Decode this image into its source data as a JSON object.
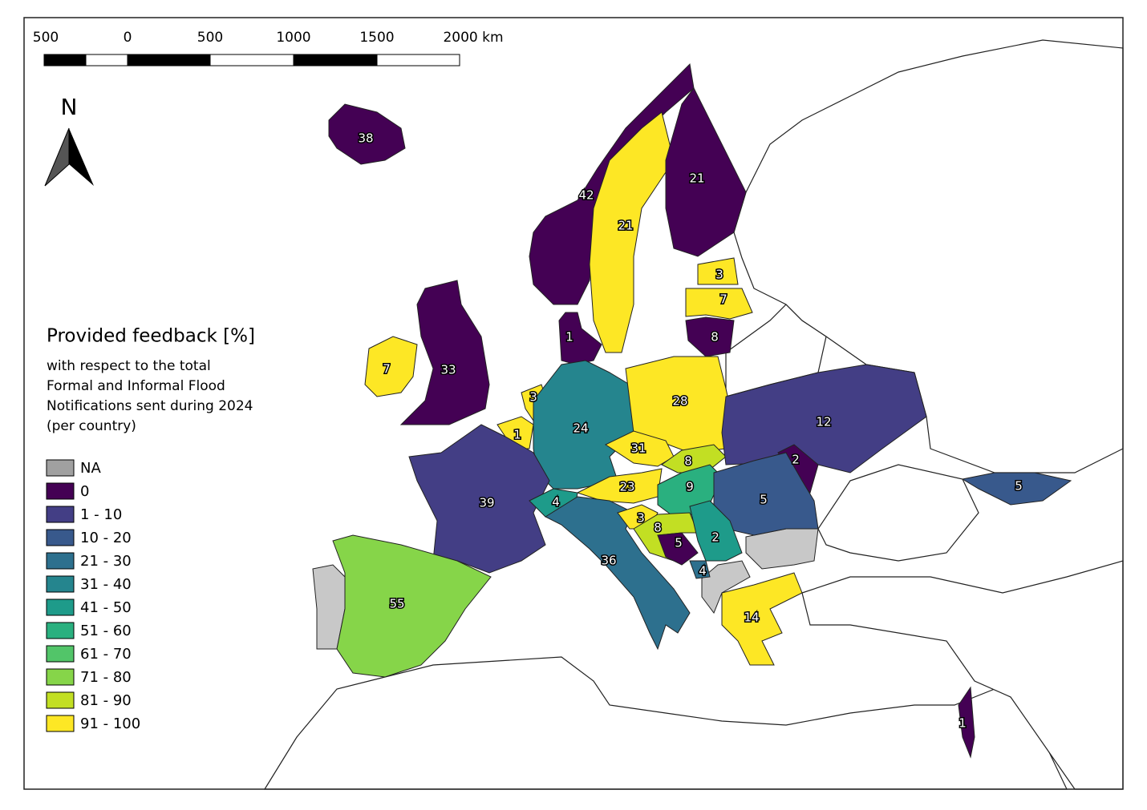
{
  "scale_bar": {
    "labels": [
      "500",
      "0",
      "500",
      "1000",
      "1500",
      "2000 km"
    ]
  },
  "north": "N",
  "legend": {
    "title": "Provided feedback [%]",
    "subtitle": [
      "with respect to the total",
      "Formal and Informal Flood",
      "Notifications sent during 2024",
      "(per country)"
    ],
    "entries": [
      {
        "label": "NA",
        "color": "#a0a0a0"
      },
      {
        "label": "0",
        "color": "#440154"
      },
      {
        "label": "1 - 10",
        "color": "#433e85"
      },
      {
        "label": "10 - 20",
        "color": "#38598c"
      },
      {
        "label": "21 - 30",
        "color": "#2d708e"
      },
      {
        "label": "31 - 40",
        "color": "#25858e"
      },
      {
        "label": "41 - 50",
        "color": "#1e9b8a"
      },
      {
        "label": "51 - 60",
        "color": "#2ab07f"
      },
      {
        "label": "61 - 70",
        "color": "#52c569"
      },
      {
        "label": "71 - 80",
        "color": "#86d549"
      },
      {
        "label": "81 - 90",
        "color": "#c2df23"
      },
      {
        "label": "91 - 100",
        "color": "#fde725"
      }
    ]
  },
  "regions": [
    {
      "label": 38,
      "color": "#440154"
    },
    {
      "label": 42,
      "color": "#440154"
    },
    {
      "label": 21,
      "color": "#fde725"
    },
    {
      "label": 21,
      "color": "#440154"
    },
    {
      "label": 3,
      "color": "#fde725"
    },
    {
      "label": 7,
      "color": "#fde725"
    },
    {
      "label": 8,
      "color": "#440154"
    },
    {
      "label": 1,
      "color": "#440154"
    },
    {
      "label": 33,
      "color": "#440154"
    },
    {
      "label": 7,
      "color": "#fde725"
    },
    {
      "label": 3,
      "color": "#fde725"
    },
    {
      "label": 1,
      "color": "#fde725"
    },
    {
      "label": 24,
      "color": "#25858e"
    },
    {
      "label": 28,
      "color": "#fde725"
    },
    {
      "label": 31,
      "color": "#fde725"
    },
    {
      "label": 8,
      "color": "#c2df23"
    },
    {
      "label": 23,
      "color": "#fde725"
    },
    {
      "label": 9,
      "color": "#2ab07f"
    },
    {
      "label": 12,
      "color": "#433e85"
    },
    {
      "label": 2,
      "color": "#440154"
    },
    {
      "label": 5,
      "color": "#38598c"
    },
    {
      "label": 5,
      "color": "#38598c"
    },
    {
      "label": 39,
      "color": "#433e85"
    },
    {
      "label": 4,
      "color": "#1e9b8a"
    },
    {
      "label": 36,
      "color": "#2d708e"
    },
    {
      "label": 3,
      "color": "#fde725"
    },
    {
      "label": 8,
      "color": "#c2df23"
    },
    {
      "label": 5,
      "color": "#440154"
    },
    {
      "label": 2,
      "color": "#1e9b8a"
    },
    {
      "label": 4,
      "color": "#2d708e"
    },
    {
      "label": 14,
      "color": "#fde725"
    },
    {
      "label": 55,
      "color": "#86d549"
    },
    {
      "label": 1,
      "color": "#440154"
    }
  ],
  "na_color": "#c8c8c8"
}
